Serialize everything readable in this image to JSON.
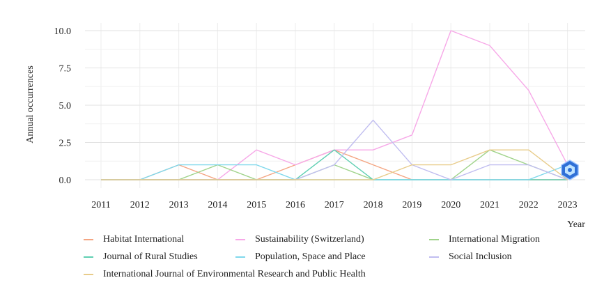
{
  "chart_data": {
    "type": "line",
    "title": "",
    "xlabel": "Year",
    "ylabel": "Annual occurrences",
    "x": [
      "2011",
      "2012",
      "2013",
      "2014",
      "2015",
      "2016",
      "2017",
      "2018",
      "2019",
      "2020",
      "2021",
      "2022",
      "2023"
    ],
    "ylim": [
      0,
      10
    ],
    "yticks": [
      "0.0",
      "2.5",
      "5.0",
      "7.5",
      "10.0"
    ],
    "grid": true,
    "legend_position": "bottom",
    "series": [
      {
        "name": "Habitat International",
        "color": "#f4a582",
        "values": [
          0,
          0,
          1,
          0,
          0,
          1,
          2,
          1,
          0,
          0,
          0,
          0,
          0
        ]
      },
      {
        "name": "Sustainability (Switzerland)",
        "color": "#f7a8e8",
        "values": [
          0,
          0,
          0,
          0,
          2,
          1,
          2,
          2,
          3,
          10,
          9,
          6,
          1
        ]
      },
      {
        "name": "International Migration",
        "color": "#9fd38a",
        "values": [
          0,
          0,
          0,
          1,
          0,
          0,
          1,
          0,
          0,
          0,
          2,
          1,
          0
        ]
      },
      {
        "name": "Journal of Rural Studies",
        "color": "#5fcfb2",
        "values": [
          0,
          0,
          0,
          0,
          0,
          0,
          2,
          0,
          0,
          0,
          0,
          0,
          0
        ]
      },
      {
        "name": "Population, Space and Place",
        "color": "#7fd8ec",
        "values": [
          0,
          0,
          1,
          1,
          1,
          0,
          0,
          0,
          0,
          0,
          0,
          0,
          1
        ]
      },
      {
        "name": "Social Inclusion",
        "color": "#c0bdf0",
        "values": [
          0,
          0,
          0,
          0,
          0,
          0,
          1,
          4,
          1,
          0,
          1,
          1,
          0
        ]
      },
      {
        "name": "International Journal of Environmental Research and Public Health",
        "color": "#e8cc8a",
        "values": [
          0,
          0,
          0,
          0,
          0,
          0,
          0,
          0,
          1,
          1,
          2,
          2,
          0
        ]
      }
    ]
  }
}
